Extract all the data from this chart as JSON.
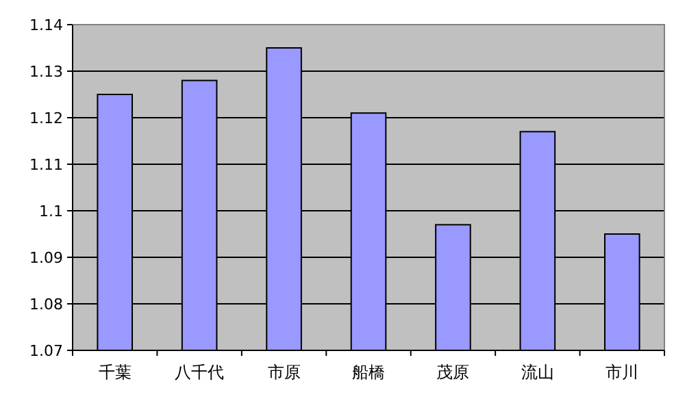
{
  "chart_data": {
    "type": "bar",
    "categories": [
      "千葉",
      "八千代",
      "市原",
      "船橋",
      "茂原",
      "流山",
      "市川"
    ],
    "values": [
      1.125,
      1.128,
      1.135,
      1.121,
      1.097,
      1.117,
      1.095
    ],
    "color": "#9999ff",
    "ylim": [
      1.07,
      1.14
    ],
    "yticks": [
      1.07,
      1.08,
      1.09,
      1.1,
      1.11,
      1.12,
      1.13,
      1.14
    ],
    "grid": "y"
  }
}
